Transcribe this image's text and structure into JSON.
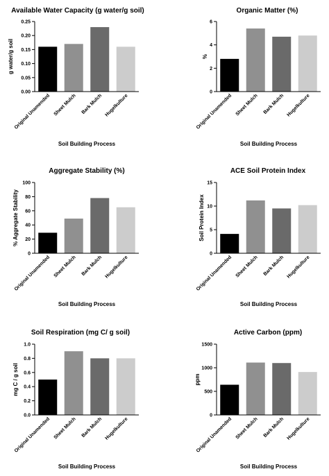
{
  "colors": [
    "#000000",
    "#909090",
    "#6a6a6a",
    "#cccccc"
  ],
  "chart_data": [
    {
      "type": "bar",
      "title": "Available Water Capacity (g water/g soil)",
      "xlabel": "Soil Building Process",
      "ylabel": "g water/g soil",
      "categories": [
        "Original Unamended",
        "Sheet Mulch",
        "Bark Mulch",
        "Hugelkulture"
      ],
      "values": [
        0.16,
        0.17,
        0.23,
        0.16
      ],
      "ylim": [
        0,
        0.25
      ],
      "yticks": [
        0,
        0.05,
        0.1,
        0.15,
        0.2,
        0.25
      ],
      "ytick_labels": [
        "0.00",
        "0.05",
        "0.10",
        "0.15",
        "0.20",
        "0.25"
      ],
      "grid": false,
      "legend": "none"
    },
    {
      "type": "bar",
      "title": "Organic Matter (%)",
      "xlabel": "Soil Building Process",
      "ylabel": "%",
      "categories": [
        "Original Unamended",
        "Sheet Mulch",
        "Bark Mulch",
        "Hugelkulture"
      ],
      "values": [
        2.8,
        5.4,
        4.7,
        4.8
      ],
      "ylim": [
        0,
        6
      ],
      "yticks": [
        0,
        2,
        4,
        6
      ],
      "ytick_labels": [
        "0",
        "2",
        "4",
        "6"
      ],
      "grid": false,
      "legend": "none"
    },
    {
      "type": "bar",
      "title": "Aggregate Stability (%)",
      "xlabel": "Soil Building Process",
      "ylabel": "% Aggregate Stability",
      "categories": [
        "Original Unamended",
        "Sheet Mulch",
        "Bark Mulch",
        "Hugelkulture"
      ],
      "values": [
        29,
        49,
        78,
        65
      ],
      "ylim": [
        0,
        100
      ],
      "yticks": [
        0,
        20,
        40,
        60,
        80,
        100
      ],
      "ytick_labels": [
        "0",
        "20",
        "40",
        "60",
        "80",
        "100"
      ],
      "grid": false,
      "legend": "none"
    },
    {
      "type": "bar",
      "title": "ACE Soil Protein Index",
      "xlabel": "Soil Building Process",
      "ylabel": "Soil Protein Index",
      "categories": [
        "Original Unamended",
        "Sheet Mulch",
        "Bark Mulch",
        "Hugelkulture"
      ],
      "values": [
        4.1,
        11.2,
        9.5,
        10.2
      ],
      "ylim": [
        0,
        15
      ],
      "yticks": [
        0,
        5,
        10,
        15
      ],
      "ytick_labels": [
        "0",
        "5",
        "10",
        "15"
      ],
      "grid": false,
      "legend": "none"
    },
    {
      "type": "bar",
      "title": "Soil Respiration (mg C/ g soil)",
      "xlabel": "Soil Building Process",
      "ylabel": "mg C / g soil",
      "categories": [
        "Original Unamended",
        "Sheet Mulch",
        "Bark Mulch",
        "Hugelkulture"
      ],
      "values": [
        0.5,
        0.9,
        0.8,
        0.8
      ],
      "ylim": [
        0,
        1.0
      ],
      "yticks": [
        0,
        0.2,
        0.4,
        0.6,
        0.8,
        1.0
      ],
      "ytick_labels": [
        "0.0",
        "0.2",
        "0.4",
        "0.6",
        "0.8",
        "1.0"
      ],
      "grid": false,
      "legend": "none"
    },
    {
      "type": "bar",
      "title": "Active Carbon (ppm)",
      "xlabel": "Soil Building Process",
      "ylabel": "ppm",
      "categories": [
        "Original Unamended",
        "Sheet Mulch",
        "Bark Mulch",
        "Hugelkulture"
      ],
      "values": [
        640,
        1110,
        1100,
        910
      ],
      "ylim": [
        0,
        1500
      ],
      "yticks": [
        0,
        500,
        1000,
        1500
      ],
      "ytick_labels": [
        "0",
        "500",
        "1000",
        "1500"
      ],
      "grid": false,
      "legend": "none"
    }
  ]
}
